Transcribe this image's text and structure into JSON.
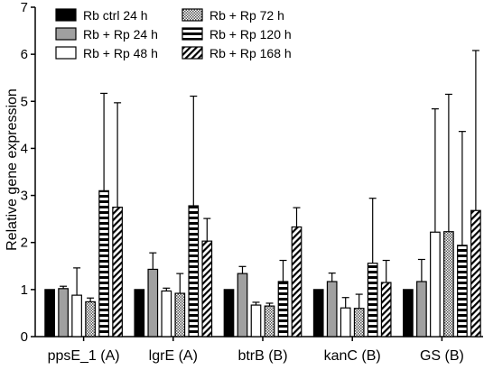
{
  "chart_data": {
    "type": "bar",
    "title": "",
    "xlabel": "",
    "ylabel": "Relative gene expression",
    "ylim": [
      0,
      7
    ],
    "yticks": [
      0,
      1,
      2,
      3,
      4,
      5,
      6,
      7
    ],
    "grid": false,
    "legend_position": "top-left",
    "categories": [
      "ppsE_1 (A)",
      "lgrE (A)",
      "btrB (B)",
      "kanC (B)",
      "GS (B)"
    ],
    "series": [
      {
        "name": "Rb ctrl 24 h",
        "pattern": "solid-black",
        "values": [
          1.0,
          1.0,
          1.0,
          1.0,
          1.0
        ],
        "errors": [
          0,
          0,
          0,
          0,
          0
        ]
      },
      {
        "name": "Rb + Rp 24 h",
        "pattern": "solid-gray",
        "values": [
          1.02,
          1.43,
          1.34,
          1.17,
          1.17
        ],
        "errors": [
          0.05,
          0.35,
          0.15,
          0.18,
          0.47
        ]
      },
      {
        "name": "Rb + Rp 48 h",
        "pattern": "white",
        "values": [
          0.88,
          0.97,
          0.67,
          0.61,
          2.22
        ],
        "errors": [
          0.58,
          0.06,
          0.06,
          0.22,
          2.62
        ]
      },
      {
        "name": "Rb + Rp 72 h",
        "pattern": "checker",
        "values": [
          0.74,
          0.92,
          0.65,
          0.6,
          2.23
        ],
        "errors": [
          0.08,
          0.42,
          0.06,
          0.3,
          2.92
        ]
      },
      {
        "name": "Rb + Rp 120 h",
        "pattern": "h-stripes",
        "values": [
          3.1,
          2.78,
          1.17,
          1.56,
          1.94
        ],
        "errors": [
          2.07,
          2.33,
          0.45,
          1.38,
          2.42
        ]
      },
      {
        "name": "Rb + Rp 168 h",
        "pattern": "diag-stripes",
        "values": [
          2.75,
          2.03,
          2.33,
          1.15,
          2.68
        ],
        "errors": [
          2.22,
          0.48,
          0.41,
          0.47,
          3.4
        ]
      }
    ]
  }
}
